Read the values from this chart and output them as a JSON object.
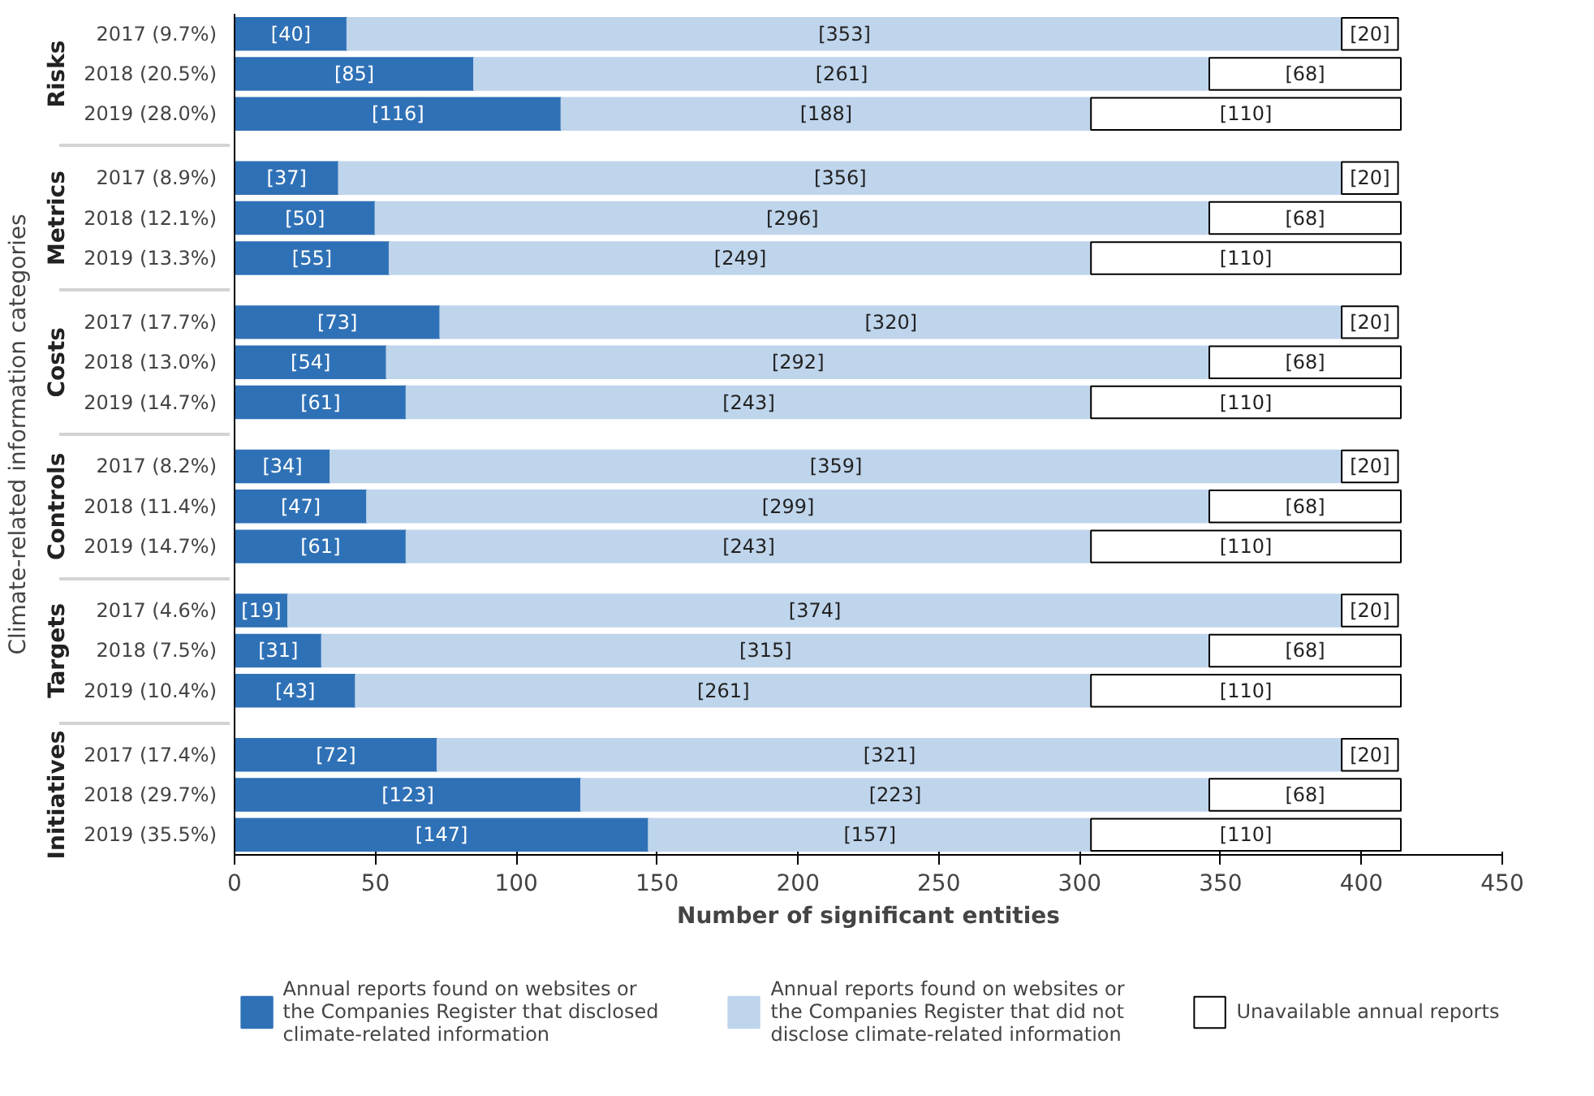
{
  "chart_data": {
    "type": "bar",
    "orientation": "horizontal",
    "stacked": true,
    "xlabel": "Number of significant entities",
    "ylabel": "Climate-related information categories",
    "categories": [
      "2017 (9.7%)",
      "2018 (20.5%)",
      "2019 (28.0%)",
      "2017 (8.9%)",
      "2018 (12.1%)",
      "2019 (13.3%)",
      "2017 (17.7%)",
      "2018 (13.0%)",
      "2019 (14.7%)",
      "2017 (8.2%)",
      "2018 (11.4%)",
      "2019 (14.7%)",
      "2017 (4.6%)",
      "2018 (7.5%)",
      "2019 (10.4%)",
      "2017 (17.4%)",
      "2018 (29.7%)",
      "2019 (35.5%)"
    ],
    "annotations": [
      "Risks",
      "Metrics",
      "Costs",
      "Controls",
      "Targets",
      "Initiatives"
    ],
    "series": [
      {
        "name": "Annual reports found on websites or the Companies Register that disclosed climate-related information",
        "color": "#2f71b6",
        "values": [
          40,
          85,
          116,
          37,
          50,
          55,
          73,
          54,
          61,
          34,
          47,
          61,
          19,
          31,
          43,
          72,
          123,
          147
        ],
        "value_labels": [
          "[40]",
          "[85]",
          "[116]",
          "[37]",
          "[50]",
          "[55]",
          "[73]",
          "[54]",
          "[61]",
          "[34]",
          "[47]",
          "[61]",
          "[19]",
          "[31]",
          "[43]",
          "[72]",
          "[123]",
          "[147]"
        ]
      },
      {
        "name": "Annual reports found on websites or the Companies Register that did not disclose climate-related information",
        "color": "#bfd5ec",
        "values": [
          353,
          261,
          188,
          356,
          296,
          249,
          320,
          292,
          243,
          359,
          299,
          243,
          374,
          315,
          261,
          321,
          223,
          157
        ],
        "value_labels": [
          "[353]",
          "[261]",
          "[188]",
          "[356]",
          "[296]",
          "[249]",
          "[320]",
          "[292]",
          "[243]",
          "[359]",
          "[299]",
          "[243]",
          "[374]",
          "[315]",
          "[261]",
          "[321]",
          "[223]",
          "[157]"
        ]
      },
      {
        "name": "Unavailable annual reports",
        "color": "#ffffff",
        "values": [
          20,
          68,
          110,
          20,
          68,
          110,
          20,
          68,
          110,
          20,
          68,
          110,
          20,
          68,
          110,
          20,
          68,
          110
        ],
        "value_labels": [
          "[20]",
          "[68]",
          "[110]",
          "[20]",
          "[68]",
          "[110]",
          "[20]",
          "[68]",
          "[110]",
          "[20]",
          "[68]",
          "[110]",
          "[20]",
          "[68]",
          "[110]",
          "[20]",
          "[68]",
          "[110]"
        ]
      }
    ],
    "xlim": [
      0,
      450
    ],
    "xticks": [
      0,
      50,
      100,
      150,
      200,
      250,
      300,
      350,
      400,
      450
    ],
    "grid": false,
    "legend": "bottom"
  }
}
